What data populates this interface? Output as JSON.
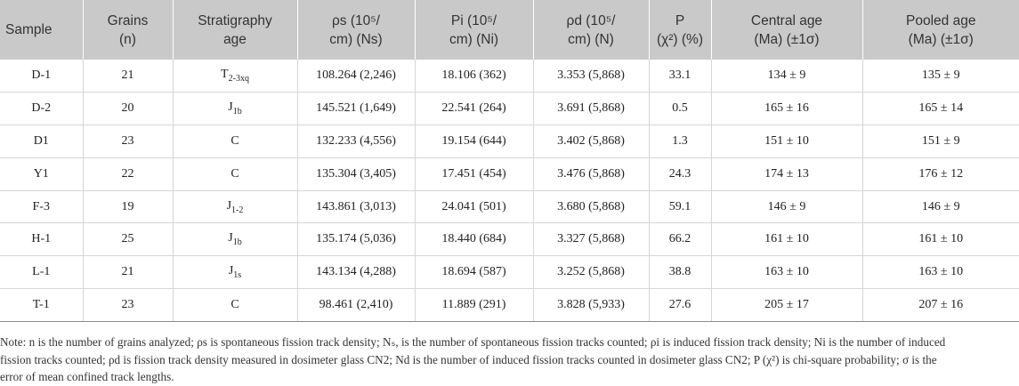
{
  "table": {
    "headers": [
      {
        "line1": "Sample",
        "line2": ""
      },
      {
        "line1": "Grains",
        "line2": "(n)"
      },
      {
        "line1": "Stratigraphy",
        "line2": "age"
      },
      {
        "line1": "ρs (10⁵/",
        "line2": "cm) (Ns)"
      },
      {
        "line1": "Pi (10⁵/",
        "line2": "cm) (Ni)"
      },
      {
        "line1": "ρd (10⁵/",
        "line2": "cm) (N)"
      },
      {
        "line1": "P",
        "line2": "(χ²) (%)"
      },
      {
        "line1": "Central age",
        "line2": "(Ma) (±1σ)"
      },
      {
        "line1": "Pooled age",
        "line2": "(Ma) (±1σ)"
      }
    ],
    "rows": [
      {
        "sample": "D-1",
        "grains": "21",
        "strat_main": "T",
        "strat_sub": "2-3xq",
        "rho_s": "108.264 (2,246)",
        "rho_i": "18.106 (362)",
        "rho_d": "3.353 (5,868)",
        "p": "33.1",
        "central": "134 ± 9",
        "pooled": "135 ± 9"
      },
      {
        "sample": "D-2",
        "grains": "20",
        "strat_main": "J",
        "strat_sub": "1b",
        "rho_s": "145.521 (1,649)",
        "rho_i": "22.541 (264)",
        "rho_d": "3.691 (5,868)",
        "p": "0.5",
        "central": "165 ± 16",
        "pooled": "165 ± 14"
      },
      {
        "sample": "D1",
        "grains": "23",
        "strat_main": "C",
        "strat_sub": "",
        "rho_s": "132.233 (4,556)",
        "rho_i": "19.154 (644)",
        "rho_d": "3.402 (5,868)",
        "p": "1.3",
        "central": "151 ± 10",
        "pooled": "151 ± 9"
      },
      {
        "sample": "Y1",
        "grains": "22",
        "strat_main": "C",
        "strat_sub": "",
        "rho_s": "135.304 (3,405)",
        "rho_i": "17.451 (454)",
        "rho_d": "3.476 (5,868)",
        "p": "24.3",
        "central": "174 ± 13",
        "pooled": "176 ± 12"
      },
      {
        "sample": "F-3",
        "grains": "19",
        "strat_main": "J",
        "strat_sub": "1-2",
        "rho_s": "143.861 (3,013)",
        "rho_i": "24.041 (501)",
        "rho_d": "3.680 (5,868)",
        "p": "59.1",
        "central": "146 ± 9",
        "pooled": "146 ± 9"
      },
      {
        "sample": "H-1",
        "grains": "25",
        "strat_main": "J",
        "strat_sub": "1b",
        "rho_s": "135.174 (5,036)",
        "rho_i": "18.440 (684)",
        "rho_d": "3.327 (5,868)",
        "p": "66.2",
        "central": "161 ± 10",
        "pooled": "161 ± 10"
      },
      {
        "sample": "L-1",
        "grains": "21",
        "strat_main": "J",
        "strat_sub": "1s",
        "rho_s": "143.134 (4,288)",
        "rho_i": "18.694 (587)",
        "rho_d": "3.252 (5,868)",
        "p": "38.8",
        "central": "163 ± 10",
        "pooled": "163 ± 10"
      },
      {
        "sample": "T-1",
        "grains": "23",
        "strat_main": "C",
        "strat_sub": "",
        "rho_s": "98.461 (2,410)",
        "rho_i": "11.889 (291)",
        "rho_d": "3.828 (5,933)",
        "p": "27.6",
        "central": "205 ± 17",
        "pooled": "207 ± 16"
      }
    ]
  },
  "note": "Note: n is the number of grains analyzed; ρs is spontaneous fission track density; Nₛ, is the number of spontaneous fission tracks counted; ρi is induced fission track density; Ni is the number of induced\nfission tracks counted; ρd is fission track density measured in dosimeter glass CN2; Nd is the number of induced fission tracks counted in dosimeter glass CN2; P (χ²) is chi-square probability; σ is the\nerror of mean confined track lengths."
}
